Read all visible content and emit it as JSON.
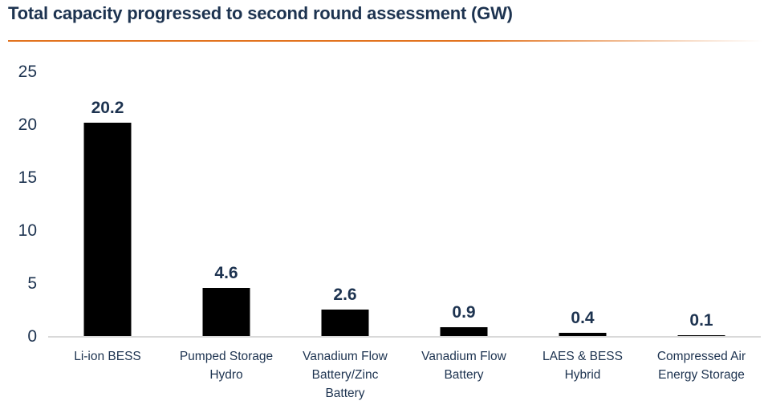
{
  "colors": {
    "navy_text": "#1D3350",
    "accent_orange": "#E2731F",
    "bar_black": "#000000",
    "axis_gray": "#D9D9D9",
    "background": "#FFFFFF"
  },
  "chart_data": {
    "type": "bar",
    "title": "Total capacity progressed to second round assessment (GW)",
    "categories": [
      "Li-ion BESS",
      "Pumped Storage Hydro",
      "Vanadium Flow Battery/Zinc Battery",
      "Vanadium Flow Battery",
      "LAES & BESS Hybrid",
      "Compressed Air Energy Storage"
    ],
    "category_display_lines": [
      "Li-ion BESS",
      "Pumped Storage\nHydro",
      "Vanadium Flow\nBattery/Zinc\nBattery",
      "Vanadium Flow\nBattery",
      "LAES & BESS\nHybrid",
      "Compressed Air\nEnergy Storage"
    ],
    "values": [
      20.2,
      4.6,
      2.6,
      0.9,
      0.4,
      0.1
    ],
    "data_labels": [
      "20.2",
      "4.6",
      "2.6",
      "0.9",
      "0.4",
      "0.1"
    ],
    "xlabel": "",
    "ylabel": "",
    "ylim": [
      0,
      25
    ],
    "yticks": [
      0,
      5,
      10,
      15,
      20,
      25
    ],
    "grid": false,
    "legend": "none",
    "bar_color": "#000000"
  }
}
